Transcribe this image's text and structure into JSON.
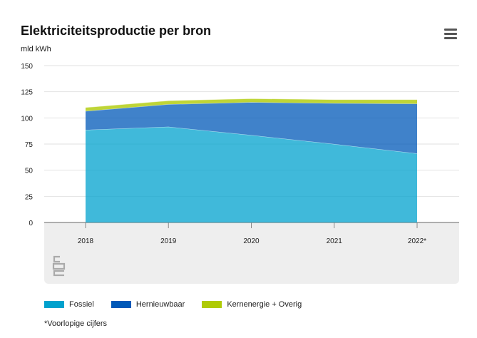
{
  "chart_data": {
    "type": "area",
    "stacked": true,
    "title": "Elektriciteitsproductie per bron",
    "ylabel": "mld kWh",
    "xlabel": "",
    "categories": [
      "2018",
      "2019",
      "2020",
      "2021",
      "2022*"
    ],
    "ylim": [
      0,
      150
    ],
    "yticks": [
      0,
      25,
      50,
      75,
      100,
      125,
      150
    ],
    "grid": true,
    "legend_position": "bottom",
    "series": [
      {
        "name": "Fossiel",
        "values": [
          88.5,
          91.5,
          83.5,
          75,
          66
        ],
        "color": "#00a1cd"
      },
      {
        "name": "Hernieuwbaar",
        "values": [
          18,
          21.5,
          31.5,
          39,
          47.5
        ],
        "color": "#0058b8"
      },
      {
        "name": "Kernenergie + Overig",
        "values": [
          3.5,
          3.5,
          3.5,
          3.5,
          4
        ],
        "color": "#afcb05"
      }
    ]
  },
  "footnote": "*Voorlopige cijfers",
  "icons": {
    "menu": "hamburger-menu-icon",
    "logo": "cbs-logo-icon"
  }
}
